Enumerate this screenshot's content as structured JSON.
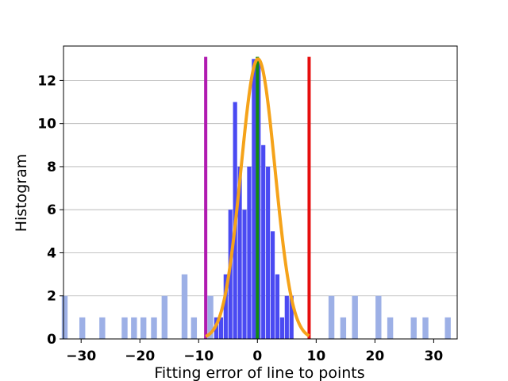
{
  "chart_data": {
    "type": "bar",
    "title": "",
    "xlabel": "Fitting error of line to points",
    "ylabel": "Histogram",
    "xlim": [
      -33,
      34
    ],
    "ylim": [
      0,
      13.6
    ],
    "grid": {
      "y": true,
      "x": false,
      "color": "#b0b0b0"
    },
    "x_ticks": [
      -30,
      -20,
      -10,
      0,
      10,
      20,
      30
    ],
    "x_tick_labels": [
      "−30",
      "−20",
      "−10",
      "0",
      "10",
      "20",
      "30"
    ],
    "y_ticks": [
      0,
      2,
      4,
      6,
      8,
      10,
      12
    ],
    "y_tick_labels": [
      "0",
      "2",
      "4",
      "6",
      "8",
      "10",
      "12"
    ],
    "series": [
      {
        "color": "#9db0e6",
        "bar_width": 1.0,
        "bars": [
          {
            "x": -32.8,
            "value": 2
          },
          {
            "x": -29.8,
            "value": 1
          },
          {
            "x": -26.4,
            "value": 1
          },
          {
            "x": -22.6,
            "value": 1
          },
          {
            "x": -21.0,
            "value": 1
          },
          {
            "x": -19.4,
            "value": 1
          },
          {
            "x": -17.6,
            "value": 1
          },
          {
            "x": -15.8,
            "value": 2
          },
          {
            "x": -12.4,
            "value": 3
          },
          {
            "x": -10.8,
            "value": 1
          },
          {
            "x": -8.0,
            "value": 2
          },
          {
            "x": 12.6,
            "value": 2
          },
          {
            "x": 14.6,
            "value": 1
          },
          {
            "x": 16.6,
            "value": 2
          },
          {
            "x": 20.6,
            "value": 2
          },
          {
            "x": 22.6,
            "value": 1
          },
          {
            "x": 26.6,
            "value": 1
          },
          {
            "x": 28.6,
            "value": 1
          },
          {
            "x": 32.4,
            "value": 1
          }
        ]
      },
      {
        "color": "#4a4af2",
        "bar_width": 0.7,
        "bars": [
          {
            "x": -7.0,
            "value": 1
          },
          {
            "x": -6.2,
            "value": 1
          },
          {
            "x": -5.4,
            "value": 3
          },
          {
            "x": -4.6,
            "value": 6
          },
          {
            "x": -3.8,
            "value": 11
          },
          {
            "x": -3.0,
            "value": 8
          },
          {
            "x": -2.2,
            "value": 6
          },
          {
            "x": -1.4,
            "value": 8
          },
          {
            "x": -0.6,
            "value": 13
          },
          {
            "x": 0.2,
            "value": 13
          },
          {
            "x": 1.0,
            "value": 9
          },
          {
            "x": 1.8,
            "value": 8
          },
          {
            "x": 2.6,
            "value": 5
          },
          {
            "x": 3.4,
            "value": 3
          },
          {
            "x": 4.2,
            "value": 1
          },
          {
            "x": 5.0,
            "value": 2
          },
          {
            "x": 5.8,
            "value": 2
          }
        ]
      }
    ],
    "curve": {
      "type": "gaussian",
      "color": "#f5a31a",
      "mean": 0.1,
      "sigma": 2.9,
      "amplitude": 13,
      "x_range": [
        -8.8,
        8.8
      ]
    },
    "vlines": [
      {
        "x": -8.8,
        "y_top": 13.1,
        "color": "#b01ab0"
      },
      {
        "x": 0.0,
        "y_top": 13.1,
        "color": "#108a10"
      },
      {
        "x": 8.8,
        "y_top": 13.1,
        "color": "#e60d0d"
      }
    ]
  }
}
